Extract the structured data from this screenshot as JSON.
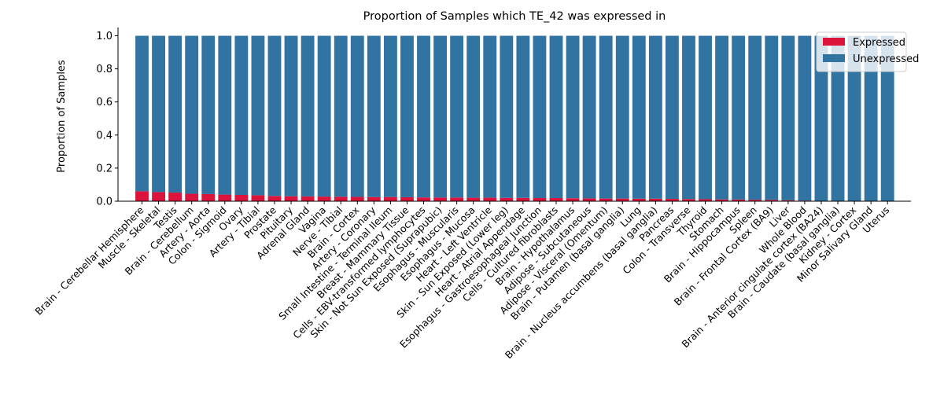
{
  "chart_data": {
    "type": "bar",
    "stacked": true,
    "title": "Proportion of Samples which TE_42 was expressed in",
    "xlabel": "",
    "ylabel": "Proportion of Samples",
    "ylim": [
      0,
      1.05
    ],
    "yticks": [
      "0.0",
      "0.2",
      "0.4",
      "0.6",
      "0.8",
      "1.0"
    ],
    "legend_position": "top-right",
    "grid": false,
    "categories": [
      "Brain - Cerebellar Hemisphere",
      "Muscle - Skeletal",
      "Testis",
      "Brain - Cerebellum",
      "Artery - Aorta",
      "Colon - Sigmoid",
      "Ovary",
      "Artery - Tibial",
      "Prostate",
      "Pituitary",
      "Adrenal Gland",
      "Vagina",
      "Nerve - Tibial",
      "Brain - Cortex",
      "Artery - Coronary",
      "Small Intestine - Terminal Ileum",
      "Breast - Mammary Tissue",
      "Cells - EBV-transformed lymphocytes",
      "Skin - Not Sun Exposed (Suprapubic)",
      "Esophagus - Muscularis",
      "Esophagus - Mucosa",
      "Heart - Left Ventricle",
      "Skin - Sun Exposed (Lower leg)",
      "Heart - Atrial Appendage",
      "Esophagus - Gastroesophageal Junction",
      "Cells - Cultured fibroblasts",
      "Brain - Hypothalamus",
      "Adipose - Subcutaneous",
      "Adipose - Visceral (Omentum)",
      "Brain - Putamen (basal ganglia)",
      "Lung",
      "Brain - Nucleus accumbens (basal ganglia)",
      "Pancreas",
      "Colon - Transverse",
      "Thyroid",
      "Stomach",
      "Brain - Hippocampus",
      "Spleen",
      "Brain - Frontal Cortex (BA9)",
      "Liver",
      "Whole Blood",
      "Brain - Anterior cingulate cortex (BA24)",
      "Brain - Caudate (basal ganglia)",
      "Kidney - Cortex",
      "Minor Salivary Gland",
      "Uterus"
    ],
    "series": [
      {
        "name": "Expressed",
        "color": "#dc143c",
        "values": [
          0.06,
          0.055,
          0.052,
          0.045,
          0.043,
          0.04,
          0.038,
          0.036,
          0.032,
          0.03,
          0.029,
          0.028,
          0.027,
          0.026,
          0.025,
          0.025,
          0.024,
          0.023,
          0.022,
          0.022,
          0.021,
          0.021,
          0.02,
          0.02,
          0.019,
          0.019,
          0.018,
          0.017,
          0.016,
          0.016,
          0.015,
          0.015,
          0.014,
          0.013,
          0.012,
          0.011,
          0.01,
          0.009,
          0.008,
          0.006,
          0.004,
          0.0,
          0.0,
          0.0,
          0.0,
          0.0
        ]
      },
      {
        "name": "Unexpressed",
        "color": "#3274a1",
        "values": [
          0.94,
          0.945,
          0.948,
          0.955,
          0.957,
          0.96,
          0.962,
          0.964,
          0.968,
          0.97,
          0.971,
          0.972,
          0.973,
          0.974,
          0.975,
          0.975,
          0.976,
          0.977,
          0.978,
          0.978,
          0.979,
          0.979,
          0.98,
          0.98,
          0.981,
          0.981,
          0.982,
          0.983,
          0.984,
          0.984,
          0.985,
          0.985,
          0.986,
          0.987,
          0.988,
          0.989,
          0.99,
          0.991,
          0.992,
          0.994,
          0.996,
          1.0,
          1.0,
          1.0,
          1.0,
          1.0
        ]
      }
    ]
  }
}
